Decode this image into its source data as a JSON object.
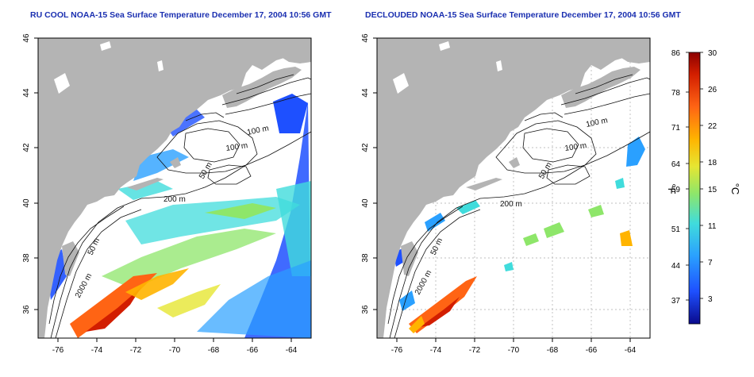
{
  "titles": {
    "left": "RU COOL NOAA-15 Sea Surface Temperature December 17, 2004 10:56 GMT",
    "right": "DECLOUDED NOAA-15 Sea Surface Temperature December 17, 2004 10:56 GMT"
  },
  "map_axes": {
    "x_ticks": [
      "-76",
      "-74",
      "-72",
      "-70",
      "-68",
      "-66",
      "-64"
    ],
    "y_ticks": [
      "36",
      "38",
      "40",
      "42",
      "44",
      "46"
    ]
  },
  "contour_labels": {
    "left": [
      "100 m",
      "100 m",
      "50 m",
      "200 m",
      "50 m",
      "2000 m"
    ],
    "right": [
      "100 m",
      "100 m",
      "50 m",
      "200 m",
      "50 m",
      "2000 m"
    ]
  },
  "colorbar": {
    "fahrenheit_unit": "°F",
    "celsius_unit": "°C",
    "fahrenheit_ticks": [
      "86",
      "78",
      "71",
      "64",
      "59",
      "51",
      "44",
      "37"
    ],
    "celsius_ticks": [
      "30",
      "26",
      "22",
      "18",
      "15",
      "11",
      "7",
      "3"
    ]
  },
  "colors": {
    "land": "#b4b4b4",
    "water_bg": "#ffffff",
    "title": "#1a2fb0",
    "scale": [
      "#0a0a8c",
      "#1e50ff",
      "#2aa0ff",
      "#40dcdc",
      "#8ee66a",
      "#e6e632",
      "#ffb400",
      "#ff6414",
      "#d21e00",
      "#8c0000"
    ]
  }
}
